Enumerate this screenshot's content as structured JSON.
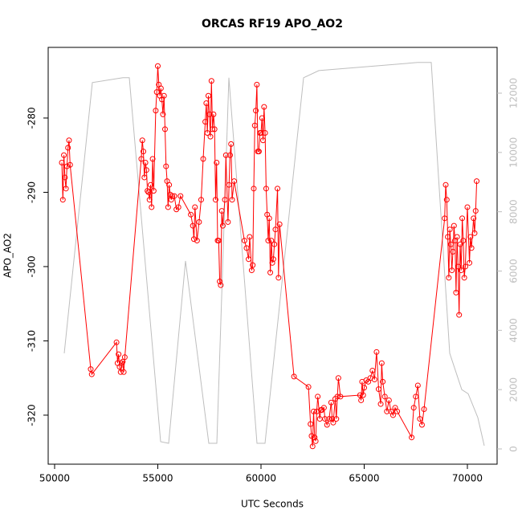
{
  "chart_data": {
    "type": "line",
    "title": "ORCAS RF19 APO_AO2",
    "xlabel": "UTC Seconds",
    "ylabel": "APO_AO2",
    "xlim": [
      49689,
      71440
    ],
    "xticks": [
      50000,
      55000,
      60000,
      65000,
      70000
    ],
    "ylim": [
      -326.6,
      -270.49
    ],
    "yticks": [
      -320,
      -310,
      -300,
      -290,
      -280
    ],
    "y2lim": [
      -515,
      13544
    ],
    "y2ticks": [
      0,
      2000,
      4000,
      6000,
      8000,
      10000,
      12000
    ],
    "grid": false,
    "series": [
      {
        "color": "#ff0000",
        "markers": true,
        "x": [
          50350,
          50400,
          50450,
          50500,
          50550,
          50600,
          50650,
          50700,
          50750,
          51750,
          51800,
          53000,
          53050,
          53100,
          53150,
          53200,
          53250,
          53300,
          53350,
          53400,
          54200,
          54250,
          54300,
          54350,
          54400,
          54450,
          54500,
          54550,
          54600,
          54650,
          54700,
          54750,
          54800,
          54900,
          54950,
          55000,
          55050,
          55100,
          55150,
          55200,
          55250,
          55300,
          55350,
          55400,
          55450,
          55500,
          55550,
          55600,
          55650,
          55700,
          55800,
          55900,
          56000,
          56100,
          56600,
          56700,
          56750,
          56800,
          56900,
          57000,
          57100,
          57200,
          57300,
          57350,
          57400,
          57450,
          57500,
          57550,
          57600,
          57650,
          57700,
          57750,
          57800,
          57850,
          57900,
          57950,
          58000,
          58050,
          58100,
          58150,
          58250,
          58300,
          58400,
          58450,
          58500,
          58550,
          58600,
          58700,
          59200,
          59300,
          59400,
          59450,
          59550,
          59600,
          59650,
          59700,
          59750,
          59800,
          59850,
          59900,
          59950,
          60000,
          60050,
          60100,
          60150,
          60200,
          60250,
          60300,
          60350,
          60400,
          60450,
          60500,
          60550,
          60600,
          60650,
          60700,
          60800,
          60850,
          60900,
          61600,
          62300,
          62400,
          62450,
          62500,
          62550,
          62600,
          62650,
          62700,
          62750,
          62850,
          62900,
          62950,
          63050,
          63100,
          63200,
          63300,
          63400,
          63450,
          63500,
          63600,
          63650,
          63700,
          63750,
          63850,
          64800,
          64850,
          64900,
          64950,
          65000,
          65100,
          65200,
          65300,
          65400,
          65500,
          65600,
          65700,
          65800,
          65850,
          65900,
          66000,
          66100,
          66200,
          66300,
          66400,
          66500,
          66600,
          67300,
          67400,
          67500,
          67600,
          67700,
          67800,
          67900,
          68900,
          68950,
          69000,
          69050,
          69100,
          69150,
          69200,
          69250,
          69300,
          69350,
          69400,
          69450,
          69500,
          69550,
          69600,
          69650,
          69700,
          69750,
          69800,
          69850,
          69900,
          70000,
          70100,
          70150,
          70200,
          70300,
          70350,
          70400,
          70450
        ],
        "values": [
          -286,
          -291,
          -285,
          -288,
          -289.5,
          -286.5,
          -284,
          -283,
          -286.3,
          -313.8,
          -314.5,
          -310.2,
          -313,
          -311.8,
          -313.5,
          -314.2,
          -313,
          -312.8,
          -314.2,
          -312.2,
          -285.5,
          -283,
          -284.5,
          -288,
          -286,
          -287,
          -289.8,
          -290,
          -291,
          -289,
          -292,
          -285.5,
          -289.8,
          -279,
          -276.5,
          -273,
          -275.5,
          -277,
          -276,
          -277.5,
          -279.5,
          -277,
          -281.5,
          -286.5,
          -288.5,
          -292,
          -289,
          -290.3,
          -291,
          -290.5,
          -290.5,
          -292.3,
          -292,
          -290.5,
          -293,
          -294.5,
          -296.3,
          -292,
          -296.5,
          -294,
          -291,
          -285.5,
          -280.5,
          -278,
          -282,
          -277,
          -279.5,
          -282.5,
          -275,
          -281.5,
          -279.5,
          -281.5,
          -291,
          -286,
          -296.5,
          -296.5,
          -302,
          -302.5,
          -292.5,
          -294.5,
          -291,
          -285,
          -294,
          -289,
          -285,
          -283.5,
          -291,
          -288.5,
          -296.5,
          -297.5,
          -299,
          -296,
          -300.5,
          -299.8,
          -289.5,
          -281,
          -279,
          -275.5,
          -284.5,
          -284.5,
          -282,
          -282,
          -280,
          -283,
          -278.5,
          -282,
          -289.5,
          -293,
          -296.5,
          -293.5,
          -300.8,
          -296.5,
          -299.5,
          -299,
          -297,
          -295,
          -289.5,
          -301.5,
          -294.3,
          -314.8,
          -316.2,
          -321.2,
          -322.8,
          -324.2,
          -319.5,
          -323,
          -323.5,
          -319.5,
          -317.5,
          -320.5,
          -319.3,
          -319.3,
          -319,
          -320.5,
          -321.3,
          -320.5,
          -318.3,
          -320.5,
          -321,
          -317.8,
          -320.5,
          -317.5,
          -315,
          -317.5,
          -317.3,
          -318,
          -315.5,
          -317.3,
          -316.3,
          -315.3,
          -315.5,
          -315,
          -314,
          -315.2,
          -311.5,
          -316.5,
          -318.5,
          -313,
          -315.5,
          -317.5,
          -319.5,
          -318,
          -319.5,
          -320,
          -319,
          -319.5,
          -323,
          -319,
          -317.5,
          -316,
          -320.5,
          -321.3,
          -319.2,
          -293.5,
          -289,
          -291,
          -296,
          -301.5,
          -295,
          -297,
          -300.5,
          -298,
          -294.5,
          -296.5,
          -303.5,
          -296,
          -300,
          -306.5,
          -297,
          -300.5,
          -293.5,
          -296.5,
          -301.5,
          -300,
          -292,
          -299.5,
          -296,
          -297.5,
          -293.5,
          -295.5,
          -292.5,
          -288.5
        ]
      },
      {
        "color": "#bebebe",
        "markers": false,
        "axis": "y2",
        "x": [
          50467,
          51829,
          53307,
          53620,
          55136,
          55526,
          56342,
          57471,
          57861,
          58443,
          59805,
          60195,
          62062,
          62802,
          67588,
          68250,
          69144,
          69728,
          70039,
          70506,
          70817
        ],
        "values": [
          3225,
          12357,
          12520,
          12520,
          244,
          190,
          6341,
          190,
          190,
          12520,
          190,
          190,
          12520,
          12760,
          13035,
          13035,
          3225,
          2000,
          1860,
          1057,
          108
        ]
      }
    ]
  }
}
